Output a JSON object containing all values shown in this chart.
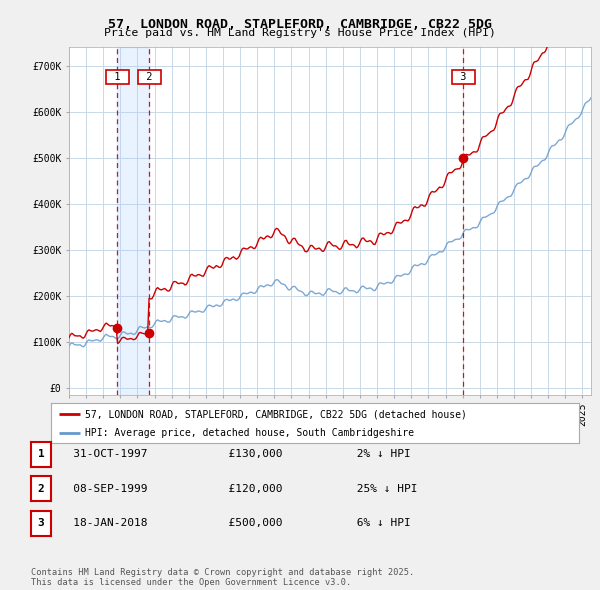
{
  "title": "57, LONDON ROAD, STAPLEFORD, CAMBRIDGE, CB22 5DG",
  "subtitle": "Price paid vs. HM Land Registry's House Price Index (HPI)",
  "bg_color": "#f0f0f0",
  "plot_bg_color": "#ffffff",
  "red_line_label": "57, LONDON ROAD, STAPLEFORD, CAMBRIDGE, CB22 5DG (detached house)",
  "blue_line_label": "HPI: Average price, detached house, South Cambridgeshire",
  "transactions": [
    {
      "num": 1,
      "date": "31-OCT-1997",
      "price": 130000,
      "pct": "2%",
      "direction": "↓",
      "x_year": 1997.83
    },
    {
      "num": 2,
      "date": "08-SEP-1999",
      "price": 120000,
      "pct": "25%",
      "direction": "↓",
      "x_year": 1999.69
    },
    {
      "num": 3,
      "date": "18-JAN-2018",
      "price": 500000,
      "pct": "6%",
      "direction": "↓",
      "x_year": 2018.05
    }
  ],
  "yticks": [
    0,
    100000,
    200000,
    300000,
    400000,
    500000,
    600000,
    700000
  ],
  "ytick_labels": [
    "£0",
    "£100K",
    "£200K",
    "£300K",
    "£400K",
    "£500K",
    "£600K",
    "£700K"
  ],
  "xmin": 1995,
  "xmax": 2025.5,
  "ymin": -15000,
  "ymax": 740000,
  "footer": "Contains HM Land Registry data © Crown copyright and database right 2025.\nThis data is licensed under the Open Government Licence v3.0.",
  "red_color": "#cc0000",
  "blue_color": "#6699cc",
  "vline_color": "#cc0000",
  "grid_color": "#c8d8e8",
  "shade_color": "#ddeeff"
}
